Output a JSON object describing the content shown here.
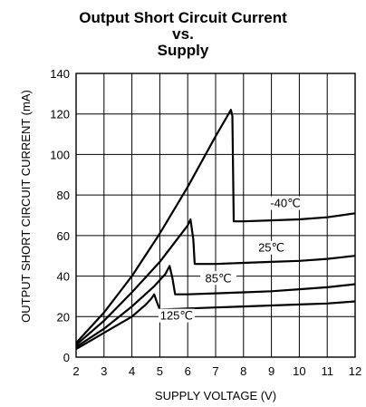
{
  "chart_data": {
    "type": "line",
    "title": [
      "Output Short Circuit Current",
      "vs.",
      "Supply"
    ],
    "xlabel": "SUPPLY VOLTAGE (V)",
    "ylabel": "OUTPUT SHORT CIRCUIT CURRENT (mA)",
    "xlim": [
      2,
      12
    ],
    "ylim": [
      0,
      140
    ],
    "xticks": [
      2,
      3,
      4,
      5,
      6,
      7,
      8,
      9,
      10,
      11,
      12
    ],
    "yticks": [
      0,
      20,
      40,
      60,
      80,
      100,
      120,
      140
    ],
    "grid": true,
    "series": [
      {
        "name": "-40℃",
        "x": [
          2.0,
          3.0,
          4.0,
          5.0,
          6.0,
          7.0,
          7.55,
          7.6,
          7.65,
          8.0,
          9.0,
          10.0,
          11.0,
          12.0
        ],
        "y": [
          7,
          22,
          40,
          61,
          84,
          109,
          122,
          119,
          67,
          67,
          67.5,
          68,
          69,
          71
        ]
      },
      {
        "name": "25℃",
        "x": [
          2.0,
          3.0,
          4.0,
          5.0,
          5.5,
          6.0,
          6.1,
          6.2,
          6.25,
          7.0,
          8.0,
          9.0,
          10.0,
          11.0,
          12.0
        ],
        "y": [
          6,
          18,
          32,
          47,
          56,
          65,
          68,
          58,
          46,
          46,
          46.5,
          47,
          47.5,
          48.5,
          50
        ]
      },
      {
        "name": "85℃",
        "x": [
          2.0,
          3.0,
          4.0,
          4.8,
          5.2,
          5.35,
          5.45,
          5.55,
          6.0,
          7.0,
          8.0,
          9.0,
          10.0,
          11.0,
          12.0
        ],
        "y": [
          5,
          14,
          25,
          35,
          41,
          45,
          39,
          31,
          31,
          31.5,
          32,
          32.5,
          33.5,
          34.5,
          36
        ]
      },
      {
        "name": "125℃",
        "x": [
          2.0,
          3.0,
          4.0,
          4.5,
          4.7,
          4.8,
          4.9,
          5.0,
          6.0,
          7.0,
          8.0,
          9.0,
          10.0,
          11.0,
          12.0
        ],
        "y": [
          4,
          12,
          20,
          26,
          29,
          31,
          27,
          23.5,
          24,
          24.5,
          25,
          25.5,
          26,
          26.5,
          27.5
        ]
      }
    ]
  }
}
